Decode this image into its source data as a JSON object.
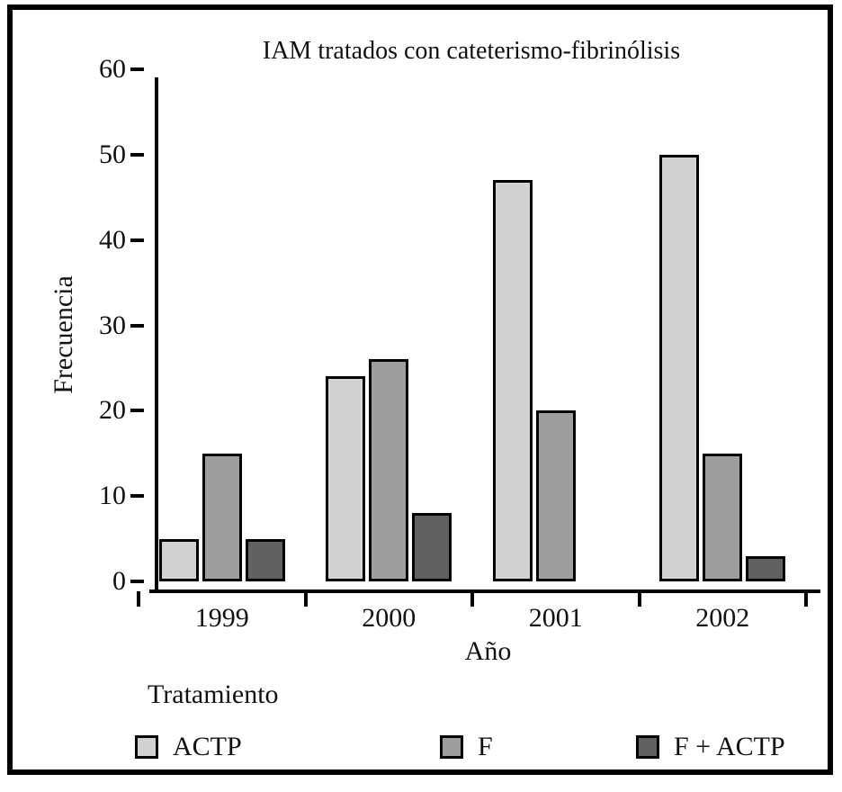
{
  "chart_data": {
    "type": "bar",
    "title": "IAM tratados con cateterismo-fibrinólisis",
    "xlabel": "Año",
    "ylabel": "Frecuencia",
    "legend_title": "Tratamiento",
    "legend_position": "bottom",
    "grid": false,
    "categories": [
      "1999",
      "2000",
      "2001",
      "2002"
    ],
    "series": [
      {
        "name": "ACTP",
        "color": "#d2d2d2",
        "values": [
          5,
          24,
          47,
          50
        ]
      },
      {
        "name": "F",
        "color": "#9e9e9e",
        "values": [
          15,
          26,
          20,
          15
        ]
      },
      {
        "name": "F + ACTP",
        "color": "#616161",
        "values": [
          5,
          8,
          0,
          3
        ]
      }
    ],
    "yticks": [
      0,
      10,
      20,
      30,
      40,
      50,
      60
    ],
    "ylim": [
      0,
      60
    ],
    "bar_border_color": "#000000",
    "axis_color": "#000000"
  }
}
